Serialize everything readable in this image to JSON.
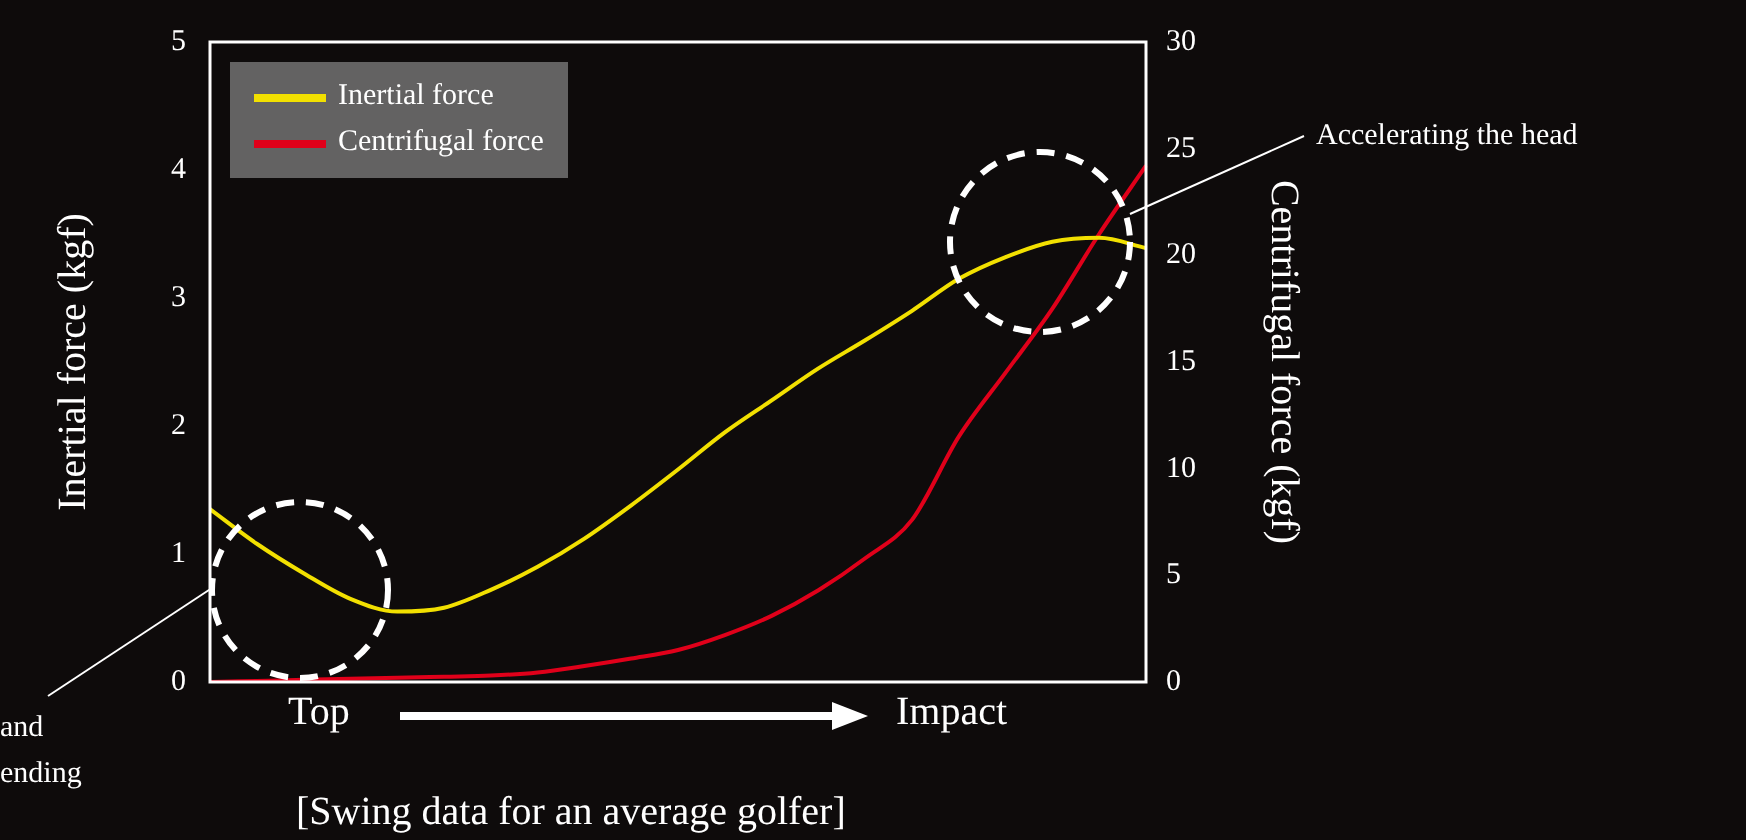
{
  "chart_data": {
    "type": "line",
    "title": "[Swing data for an average golfer]",
    "ylabel": "Inertial force (kgf)",
    "y2label": "Centrifugal force (kgf)",
    "annotations": [
      "Top",
      "Impact",
      "Accelerating the head",
      "and",
      "ending"
    ],
    "categories": [
      null,
      null,
      null,
      null,
      null,
      null,
      null,
      null,
      null,
      null,
      null,
      null,
      null,
      null,
      null,
      null,
      null,
      null,
      null,
      null,
      null
    ],
    "series": [
      {
        "name": "Inertial force",
        "color": "#f2e000",
        "values": [
          1.35,
          1.08,
          0.85,
          0.65,
          0.55,
          0.58,
          0.72,
          0.9,
          1.12,
          1.38,
          1.66,
          1.95,
          2.2,
          2.45,
          2.67,
          2.9,
          3.15,
          3.32,
          3.44,
          3.47,
          3.39
        ]
      },
      {
        "name": "Centrifugal force",
        "color": "#e0001a",
        "axis": "y2",
        "values": [
          0,
          0.05,
          0.1,
          0.15,
          0.2,
          0.25,
          0.3,
          0.45,
          0.75,
          1.1,
          1.5,
          2.2,
          3.1,
          4.3,
          5.8,
          7.6,
          11.5,
          14.5,
          17.5,
          21,
          24.2
        ]
      }
    ],
    "ylim": [
      0,
      5
    ],
    "yticks": [
      0,
      1,
      2,
      3,
      4,
      5
    ],
    "y2lim": [
      0,
      30
    ],
    "y2ticks": [
      0,
      5,
      10,
      15,
      20,
      25,
      30
    ],
    "legend": "top left",
    "marker": "none",
    "line_style": "solid"
  }
}
